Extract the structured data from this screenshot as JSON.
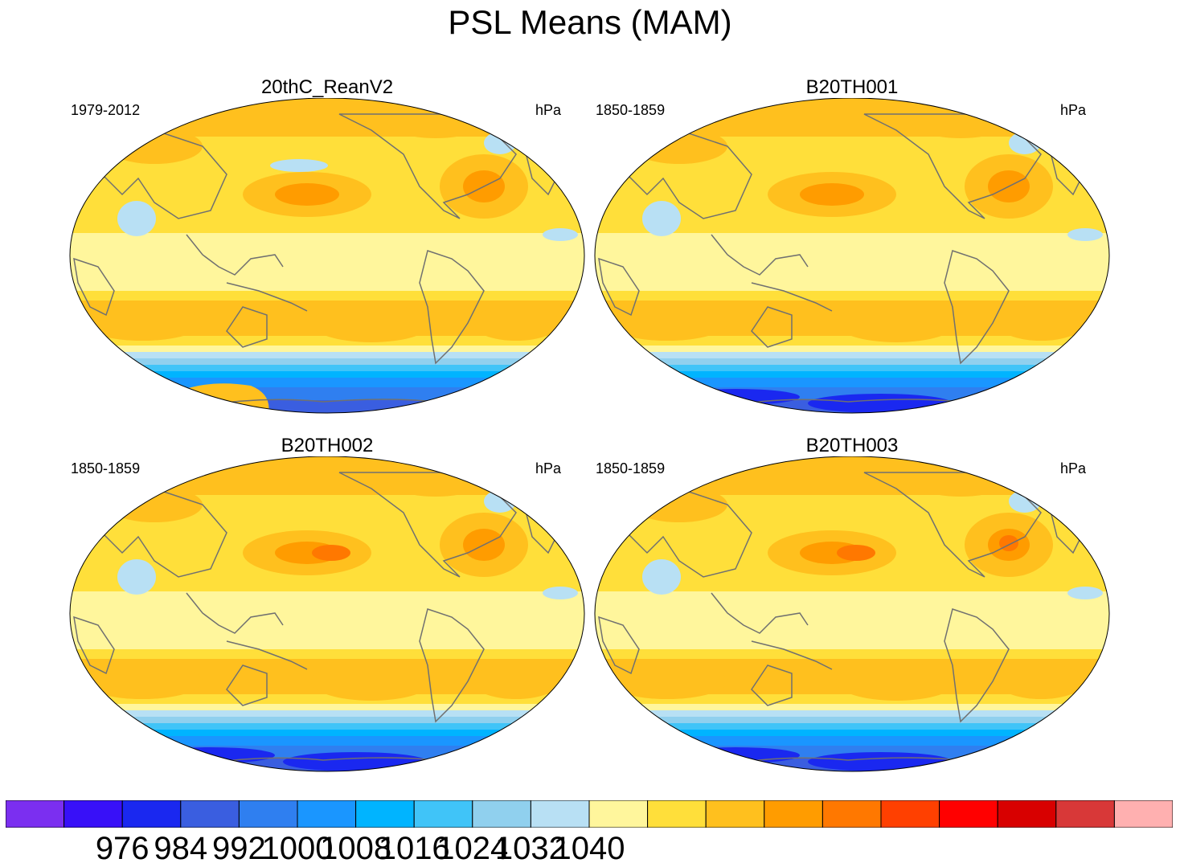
{
  "title": "PSL Means (MAM)",
  "panels": [
    {
      "title": "20thC_ReanV2",
      "period": "1979-2012",
      "units": "hPa"
    },
    {
      "title": "B20TH001",
      "period": "1850-1859",
      "units": "hPa"
    },
    {
      "title": "B20TH002",
      "period": "1850-1859",
      "units": "hPa"
    },
    {
      "title": "B20TH003",
      "period": "1850-1859",
      "units": "hPa"
    }
  ],
  "colorbar": {
    "colors": [
      "#7b2ff0",
      "#3810f8",
      "#1a28f0",
      "#3a5ee0",
      "#2f7ff0",
      "#1a96ff",
      "#00b4ff",
      "#40c4f8",
      "#90d0ee",
      "#b8e0f4",
      "#fff69c",
      "#ffdf3a",
      "#ffc01e",
      "#ff9c00",
      "#ff7800",
      "#ff4000",
      "#ff0000",
      "#d80000",
      "#d83838",
      "#ffb0b0"
    ],
    "labels": [
      "976",
      "984",
      "992",
      "1000",
      "1008",
      "1016",
      "1024",
      "1032",
      "1040"
    ]
  }
}
